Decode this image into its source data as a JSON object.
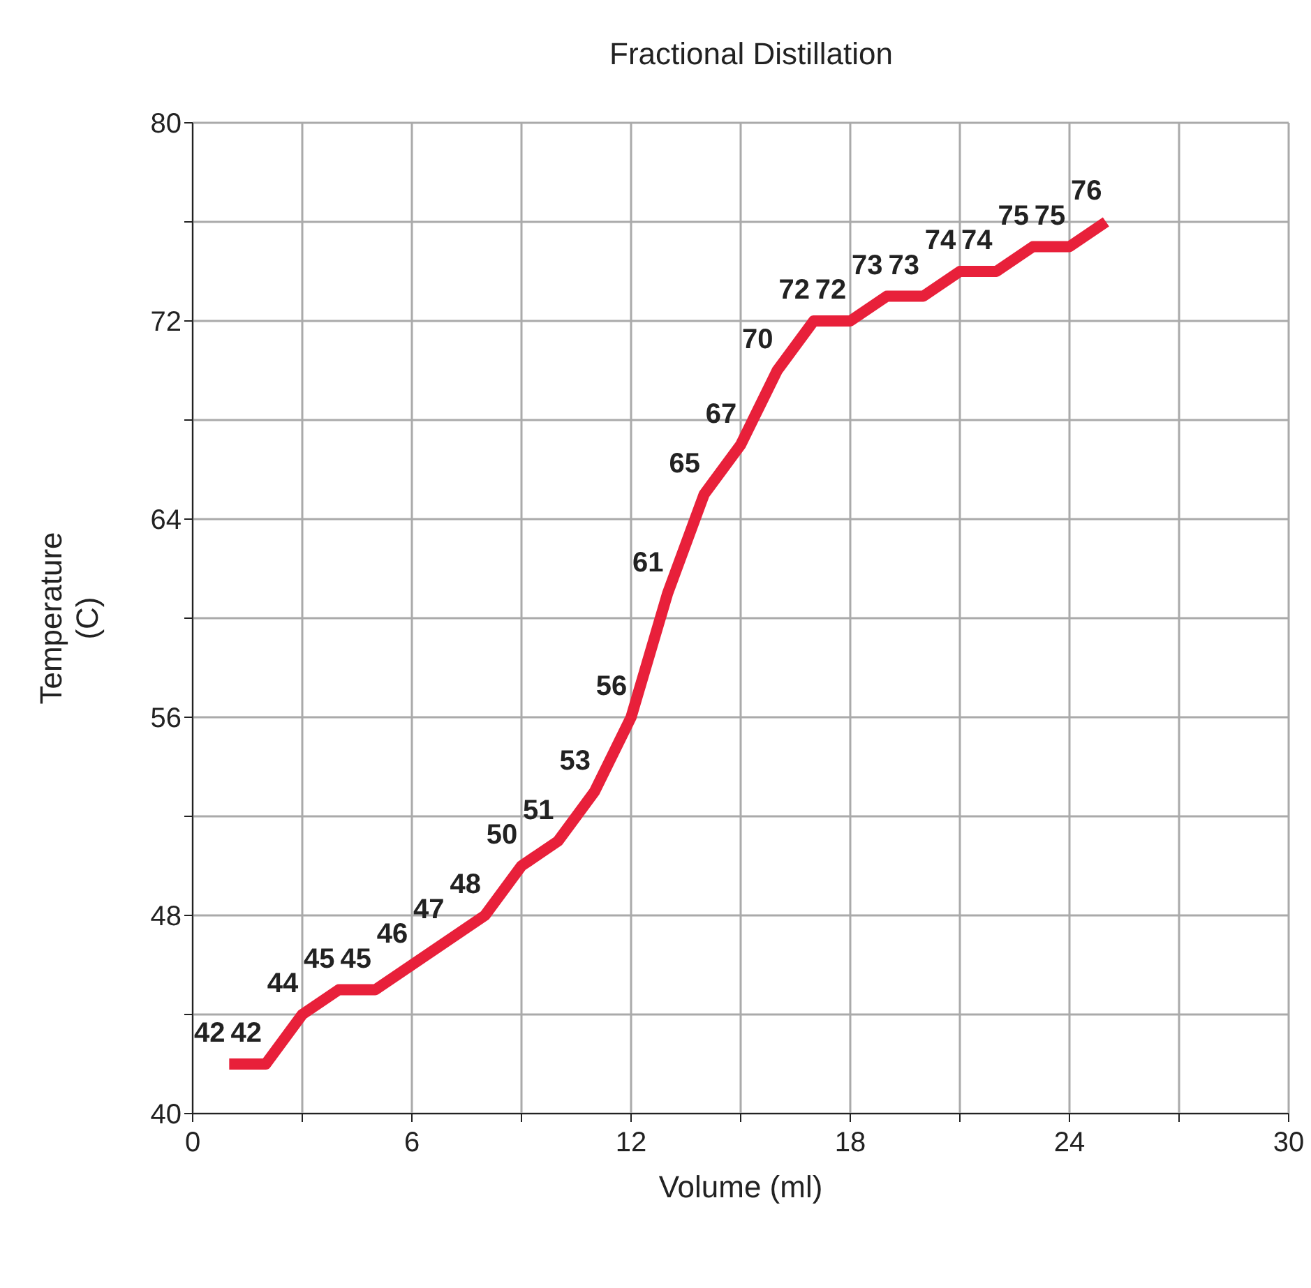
{
  "chart_data": {
    "type": "line",
    "title": "Fractional Distillation",
    "xlabel": "Volume (ml)",
    "ylabel": "Temperature (C)",
    "x": [
      1,
      2,
      3,
      4,
      5,
      6,
      7,
      8,
      9,
      10,
      11,
      12,
      13,
      14,
      15,
      16,
      17,
      18,
      19,
      20,
      21,
      22,
      23,
      24,
      25
    ],
    "series": [
      {
        "color": "#e8203a",
        "values": [
          42,
          42,
          44,
          45,
          45,
          46,
          47,
          48,
          50,
          51,
          53,
          56,
          61,
          65,
          67,
          70,
          72,
          72,
          73,
          73,
          74,
          74,
          75,
          75,
          76
        ]
      }
    ],
    "xlim": [
      0,
      30
    ],
    "xticks": [
      0,
      {
        "value": 3,
        "label": null
      },
      6,
      {
        "value": 9,
        "label": null
      },
      12,
      {
        "value": 15,
        "label": null
      },
      18,
      {
        "value": 21,
        "label": null
      },
      24,
      {
        "value": 27,
        "label": null
      },
      30
    ],
    "ylim": [
      40,
      80
    ],
    "yticks": [
      40,
      {
        "value": 44,
        "label": null
      },
      48,
      {
        "value": 52,
        "label": null
      },
      56,
      {
        "value": 60,
        "label": null
      },
      64,
      {
        "value": 68,
        "label": null
      },
      72,
      {
        "value": 76,
        "label": null
      },
      80
    ],
    "grid": true,
    "data_labels": true,
    "marker": "none",
    "line_style": "solid"
  }
}
